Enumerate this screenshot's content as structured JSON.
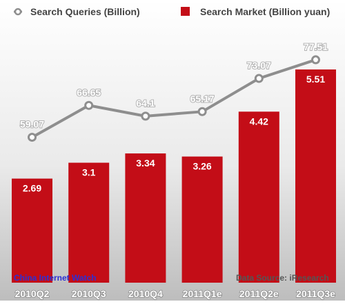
{
  "chart_data": {
    "type": "bar",
    "categories": [
      "2010Q2",
      "2010Q3",
      "2010Q4",
      "2011Q1e",
      "2011Q2e",
      "2011Q3e"
    ],
    "series": [
      {
        "name": "Search Market (Billion yuan)",
        "type": "bar",
        "values": [
          2.69,
          3.1,
          3.34,
          3.26,
          4.42,
          5.51
        ]
      },
      {
        "name": "Search Queries (Billion)",
        "type": "line",
        "values": [
          59.07,
          66.65,
          64.1,
          65.17,
          73.07,
          77.51
        ]
      }
    ],
    "bar_value_labels": [
      "2.69",
      "3.1",
      "3.34",
      "3.26",
      "4.42",
      "5.51"
    ],
    "line_value_labels": [
      "59.07",
      "66.65",
      "64.1",
      "65.17",
      "73.07",
      "77.51"
    ],
    "legend": {
      "placement": "top",
      "line_label": "Search Queries (Billion)",
      "bar_label": "Search Market (Billion yuan)"
    },
    "colors": {
      "bar": "#c30d17",
      "line": "#8e8e8e",
      "marker_fill": "#ffffff"
    },
    "grid": false,
    "bar_ylim": [
      0,
      6
    ],
    "line_ylim": [
      0,
      100
    ]
  },
  "watermarks": {
    "left": "China Internet Watch",
    "right": "Data Source: iResearch"
  }
}
